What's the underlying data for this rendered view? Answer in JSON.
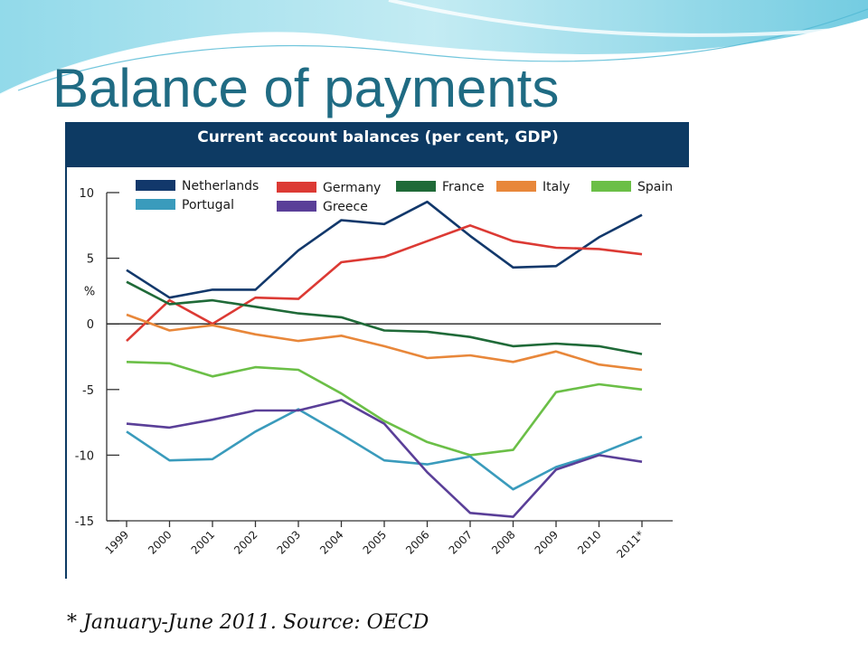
{
  "slide": {
    "title": "Balance of payments",
    "footnote": "* January-June 2011. Source: OECD"
  },
  "chart_data": {
    "type": "line",
    "title": "Current account balances (per cent, GDP)",
    "ylabel": "%",
    "xlabel": "",
    "ylim": [
      -15,
      10
    ],
    "yticks": [
      10,
      5,
      0,
      -5,
      -10,
      -15
    ],
    "grid": false,
    "zero_line": true,
    "legend_position": "top",
    "categories": [
      "1999",
      "2000",
      "2001",
      "2002",
      "2003",
      "2004",
      "2005",
      "2006",
      "2007",
      "2008",
      "2009",
      "2010",
      "2011*"
    ],
    "series": [
      {
        "name": "Netherlands",
        "color": "#12386b",
        "values": [
          4.1,
          2.0,
          2.6,
          2.6,
          5.6,
          7.9,
          7.6,
          9.3,
          6.7,
          4.3,
          4.4,
          6.6,
          8.3
        ]
      },
      {
        "name": "Germany",
        "color": "#dc3a34",
        "values": [
          -1.3,
          1.8,
          0.0,
          2.0,
          1.9,
          4.7,
          5.1,
          6.3,
          7.5,
          6.3,
          5.8,
          5.7,
          5.3
        ]
      },
      {
        "name": "France",
        "color": "#1f6a38",
        "values": [
          3.2,
          1.5,
          1.8,
          1.3,
          0.8,
          0.5,
          -0.5,
          -0.6,
          -1.0,
          -1.7,
          -1.5,
          -1.7,
          -2.3
        ]
      },
      {
        "name": "Italy",
        "color": "#e8873a",
        "values": [
          0.7,
          -0.5,
          -0.1,
          -0.8,
          -1.3,
          -0.9,
          -1.7,
          -2.6,
          -2.4,
          -2.9,
          -2.1,
          -3.1,
          -3.5
        ]
      },
      {
        "name": "Spain",
        "color": "#6bbf47",
        "values": [
          -2.9,
          -3.0,
          -4.0,
          -3.3,
          -3.5,
          -5.3,
          -7.4,
          -9.0,
          -10.0,
          -9.6,
          -5.2,
          -4.6,
          -5.0
        ]
      },
      {
        "name": "Portugal",
        "color": "#3a9bbc",
        "values": [
          -8.2,
          -10.4,
          -10.3,
          -8.2,
          -6.5,
          -8.4,
          -10.4,
          -10.7,
          -10.1,
          -12.6,
          -10.9,
          -9.9,
          -8.6
        ]
      },
      {
        "name": "Greece",
        "color": "#5a3f98",
        "values": [
          -7.6,
          -7.9,
          -7.3,
          -6.6,
          -6.6,
          -5.8,
          -7.6,
          -11.3,
          -14.4,
          -14.7,
          -11.1,
          -10.0,
          -10.5
        ]
      }
    ]
  }
}
